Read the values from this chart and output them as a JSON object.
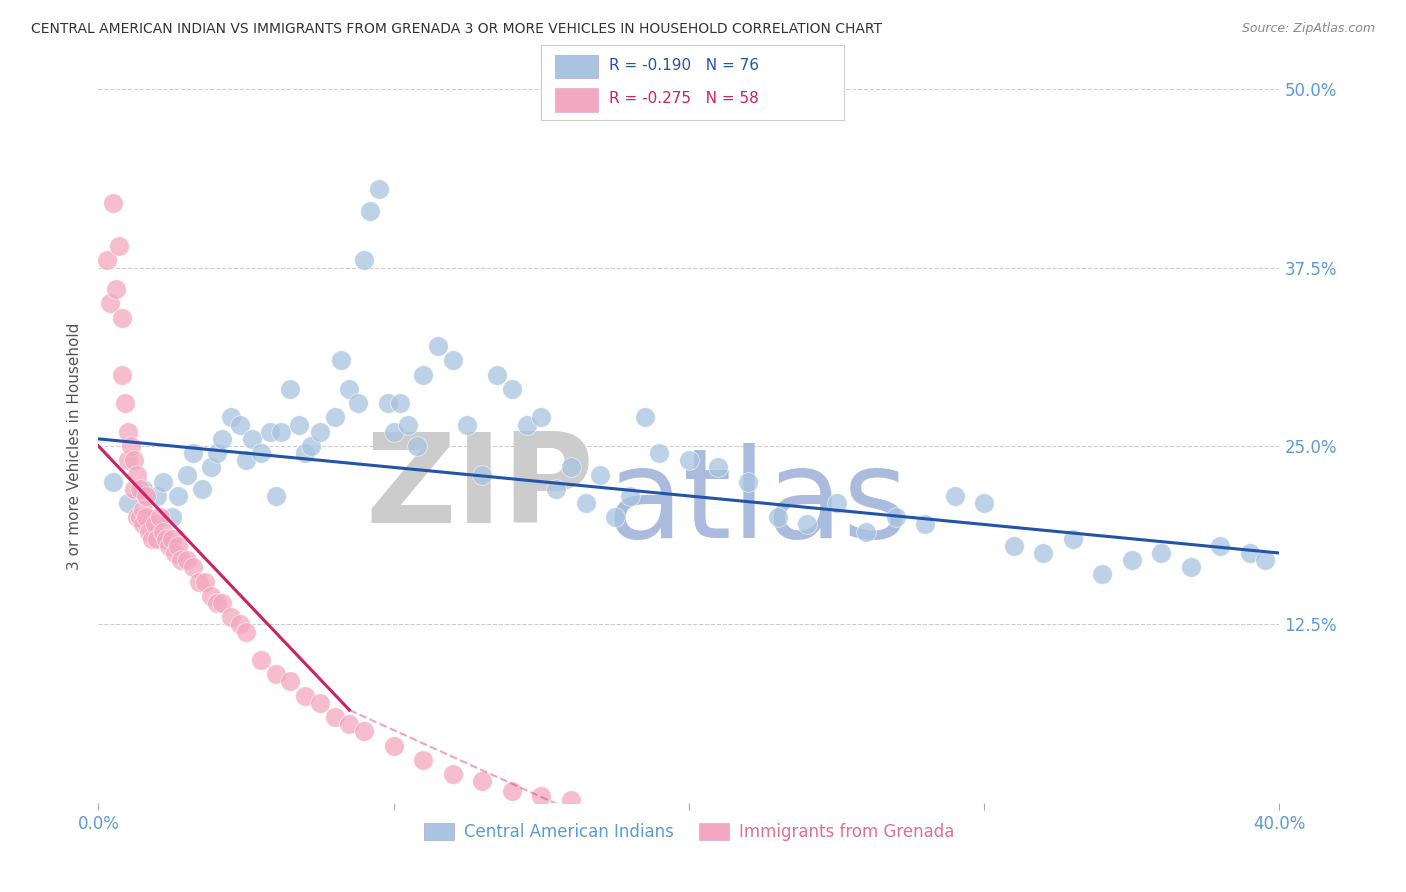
{
  "title": "CENTRAL AMERICAN INDIAN VS IMMIGRANTS FROM GRENADA 3 OR MORE VEHICLES IN HOUSEHOLD CORRELATION CHART",
  "source": "Source: ZipAtlas.com",
  "ylabel": "3 or more Vehicles in Household",
  "x_min": 0.0,
  "x_max": 0.4,
  "y_min": 0.0,
  "y_max": 0.5,
  "y_ticks": [
    0.0,
    0.125,
    0.25,
    0.375,
    0.5
  ],
  "y_tick_labels_right": [
    "",
    "12.5%",
    "25.0%",
    "37.5%",
    "50.0%"
  ],
  "blue_R": -0.19,
  "blue_N": 76,
  "pink_R": -0.275,
  "pink_N": 58,
  "blue_dot_color": "#A8C4E0",
  "pink_dot_color": "#F4A7C0",
  "blue_line_color": "#2255AA",
  "pink_line_color": "#CC2266",
  "watermark_ZIP_color": "#CCCCCC",
  "watermark_atlas_color": "#AABBDD",
  "legend_label_blue": "Central American Indians",
  "legend_label_pink": "Immigrants from Grenada",
  "blue_x": [
    0.005,
    0.01,
    0.015,
    0.02,
    0.022,
    0.025,
    0.027,
    0.03,
    0.032,
    0.035,
    0.038,
    0.04,
    0.042,
    0.045,
    0.048,
    0.05,
    0.052,
    0.055,
    0.058,
    0.06,
    0.062,
    0.065,
    0.068,
    0.07,
    0.072,
    0.075,
    0.08,
    0.082,
    0.085,
    0.088,
    0.09,
    0.092,
    0.095,
    0.098,
    0.1,
    0.102,
    0.105,
    0.108,
    0.11,
    0.115,
    0.12,
    0.125,
    0.13,
    0.135,
    0.14,
    0.145,
    0.15,
    0.155,
    0.16,
    0.165,
    0.17,
    0.175,
    0.18,
    0.185,
    0.19,
    0.2,
    0.21,
    0.22,
    0.23,
    0.24,
    0.25,
    0.26,
    0.27,
    0.28,
    0.29,
    0.3,
    0.31,
    0.32,
    0.33,
    0.34,
    0.35,
    0.36,
    0.37,
    0.38,
    0.39,
    0.395
  ],
  "blue_y": [
    0.225,
    0.21,
    0.22,
    0.215,
    0.225,
    0.2,
    0.215,
    0.23,
    0.245,
    0.22,
    0.235,
    0.245,
    0.255,
    0.27,
    0.265,
    0.24,
    0.255,
    0.245,
    0.26,
    0.215,
    0.26,
    0.29,
    0.265,
    0.245,
    0.25,
    0.26,
    0.27,
    0.31,
    0.29,
    0.28,
    0.38,
    0.415,
    0.43,
    0.28,
    0.26,
    0.28,
    0.265,
    0.25,
    0.3,
    0.32,
    0.31,
    0.265,
    0.23,
    0.3,
    0.29,
    0.265,
    0.27,
    0.22,
    0.235,
    0.21,
    0.23,
    0.2,
    0.215,
    0.27,
    0.245,
    0.24,
    0.235,
    0.225,
    0.2,
    0.195,
    0.21,
    0.19,
    0.2,
    0.195,
    0.215,
    0.21,
    0.18,
    0.175,
    0.185,
    0.16,
    0.17,
    0.175,
    0.165,
    0.18,
    0.175,
    0.17
  ],
  "pink_x": [
    0.003,
    0.004,
    0.005,
    0.006,
    0.007,
    0.008,
    0.008,
    0.009,
    0.01,
    0.01,
    0.011,
    0.012,
    0.012,
    0.013,
    0.013,
    0.014,
    0.014,
    0.015,
    0.015,
    0.016,
    0.016,
    0.017,
    0.018,
    0.019,
    0.02,
    0.021,
    0.022,
    0.023,
    0.024,
    0.025,
    0.026,
    0.027,
    0.028,
    0.03,
    0.032,
    0.034,
    0.036,
    0.038,
    0.04,
    0.042,
    0.045,
    0.048,
    0.05,
    0.055,
    0.06,
    0.065,
    0.07,
    0.075,
    0.08,
    0.085,
    0.09,
    0.1,
    0.11,
    0.12,
    0.13,
    0.14,
    0.15,
    0.16
  ],
  "pink_y": [
    0.38,
    0.35,
    0.42,
    0.36,
    0.39,
    0.34,
    0.3,
    0.28,
    0.26,
    0.24,
    0.25,
    0.24,
    0.22,
    0.23,
    0.2,
    0.22,
    0.2,
    0.205,
    0.195,
    0.215,
    0.2,
    0.19,
    0.185,
    0.195,
    0.185,
    0.2,
    0.19,
    0.185,
    0.18,
    0.185,
    0.175,
    0.18,
    0.17,
    0.17,
    0.165,
    0.155,
    0.155,
    0.145,
    0.14,
    0.14,
    0.13,
    0.125,
    0.12,
    0.1,
    0.09,
    0.085,
    0.075,
    0.07,
    0.06,
    0.055,
    0.05,
    0.04,
    0.03,
    0.02,
    0.015,
    0.008,
    0.005,
    0.002
  ],
  "blue_line_x0": 0.0,
  "blue_line_x1": 0.4,
  "blue_line_y0": 0.255,
  "blue_line_y1": 0.175,
  "pink_line_solid_x0": 0.0,
  "pink_line_solid_x1": 0.085,
  "pink_line_solid_y0": 0.25,
  "pink_line_solid_y1": 0.065,
  "pink_line_dashed_x0": 0.085,
  "pink_line_dashed_x1": 0.165,
  "pink_line_dashed_y0": 0.065,
  "pink_line_dashed_y1": -0.01
}
